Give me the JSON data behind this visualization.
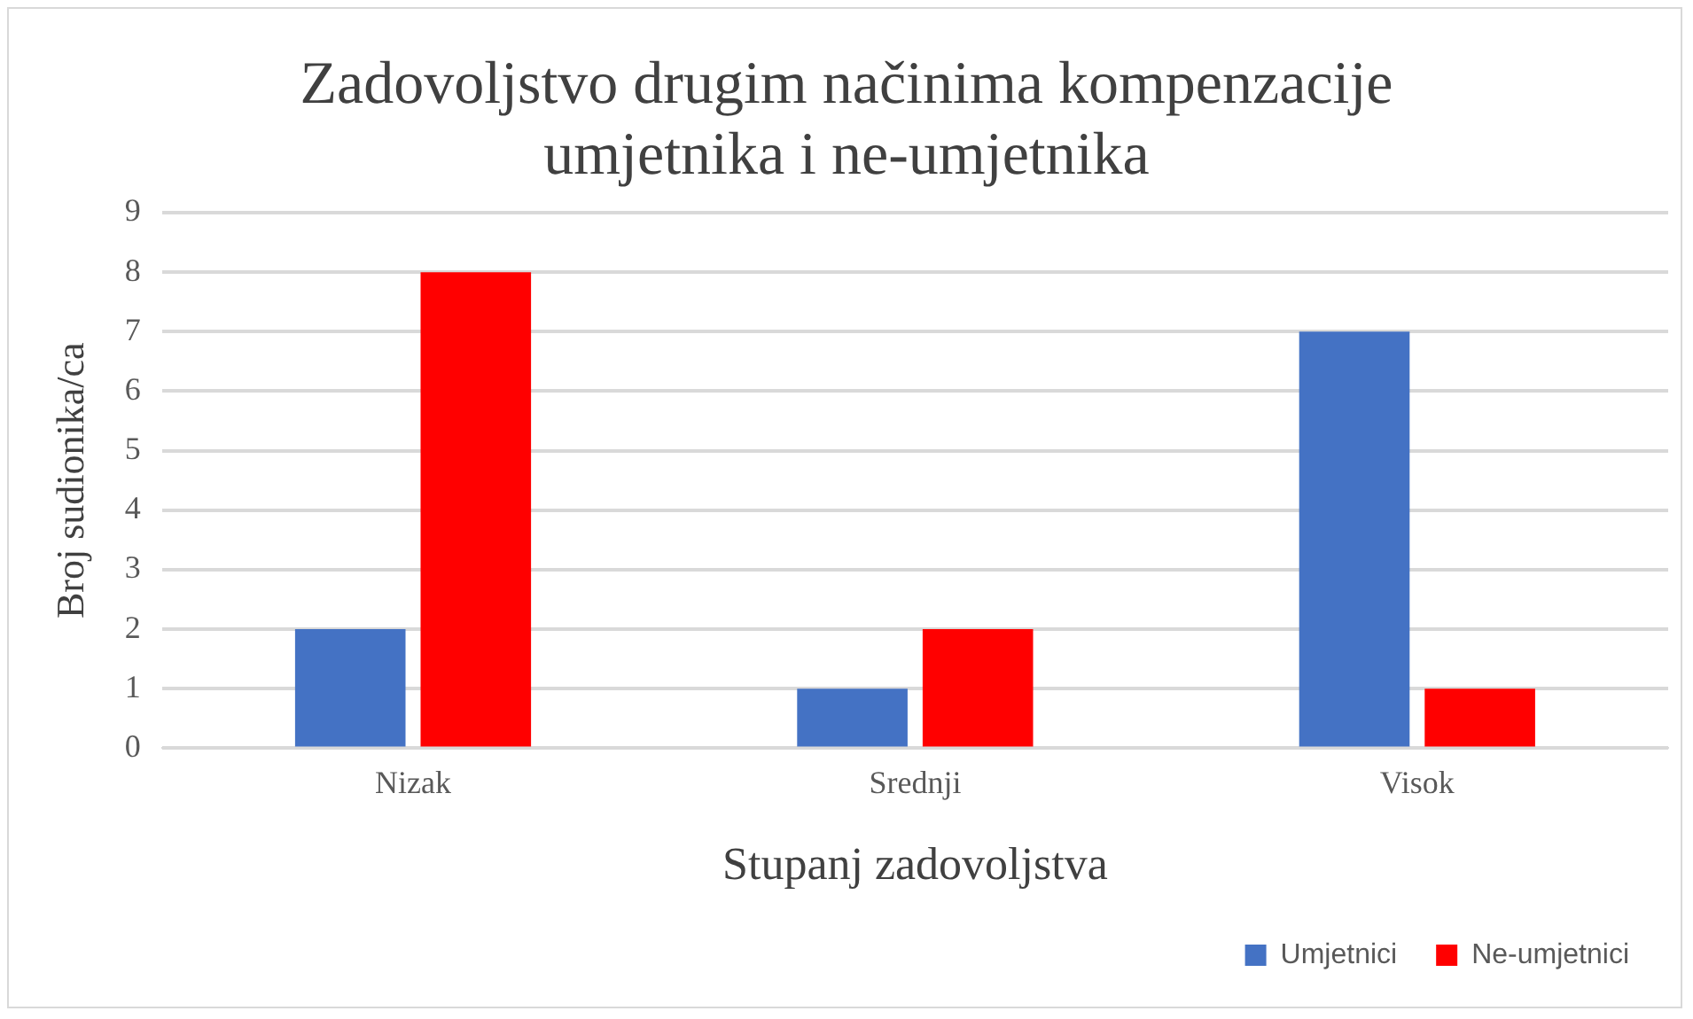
{
  "chart_data": {
    "type": "bar",
    "title": "Zadovoljstvo drugim načinima kompenzacije umjetnika i ne-umjetnika",
    "xlabel": "Stupanj zadovoljstva",
    "ylabel": "Broj sudionika/ca",
    "categories": [
      "Nizak",
      "Srednji",
      "Visok"
    ],
    "series": [
      {
        "name": "Umjetnici",
        "color": "#4472c4",
        "values": [
          2,
          1,
          7
        ]
      },
      {
        "name": "Ne-umjetnici",
        "color": "#ff0000",
        "values": [
          8,
          2,
          1
        ]
      }
    ],
    "ylim": [
      0,
      9
    ],
    "yticks": [
      0,
      1,
      2,
      3,
      4,
      5,
      6,
      7,
      8,
      9
    ],
    "grid": "y",
    "legend": "bottom right"
  }
}
